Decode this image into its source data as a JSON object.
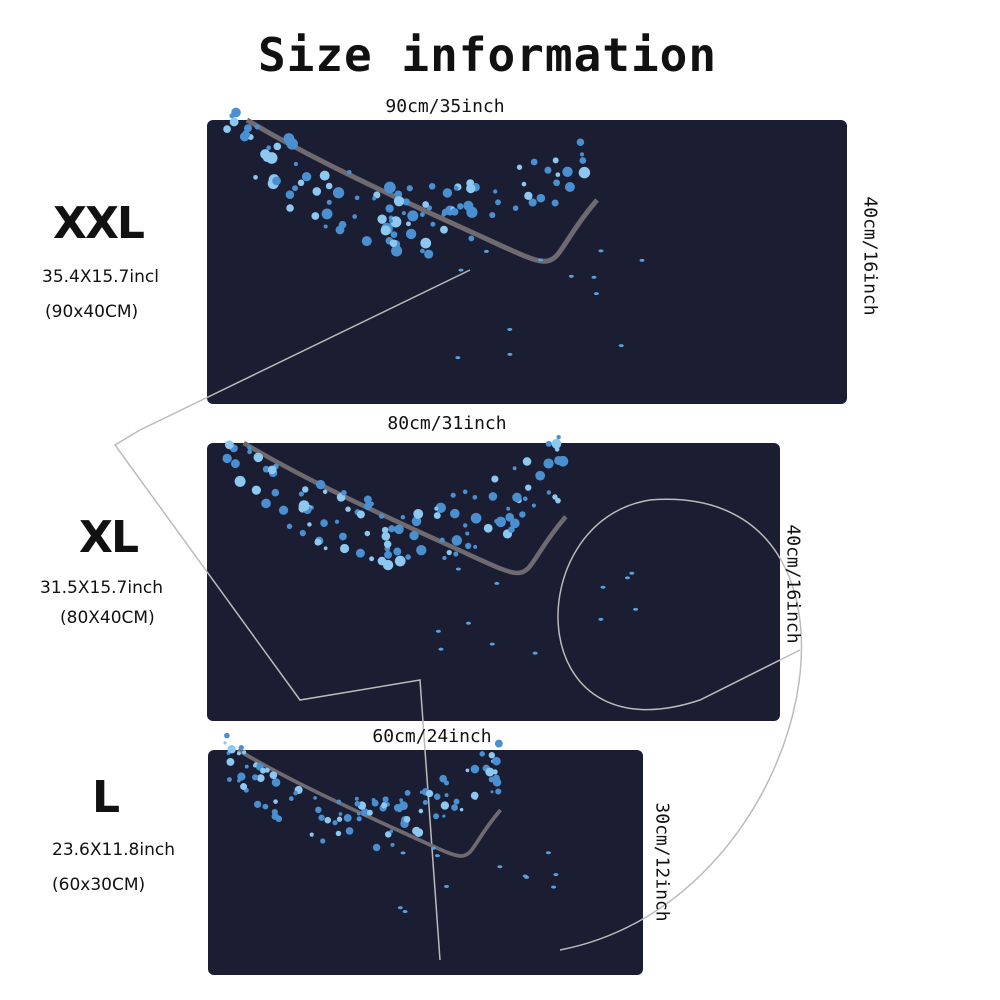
{
  "title": "Size information",
  "sizes": [
    {
      "name": "XXL",
      "inches": "35.4X15.7incl",
      "cm": "(90x40CM)",
      "width": "90cm/35inch",
      "height": "40cm/16inch"
    },
    {
      "name": "XL",
      "inches": "31.5X15.7inch",
      "cm": "(80X40CM)",
      "width": "80cm/31inch",
      "height": "40cm/16inch"
    },
    {
      "name": "L",
      "inches": "23.6X11.8inch",
      "cm": "(60x30CM)",
      "width": "60cm/24inch",
      "height": "30cm/12inch"
    }
  ]
}
